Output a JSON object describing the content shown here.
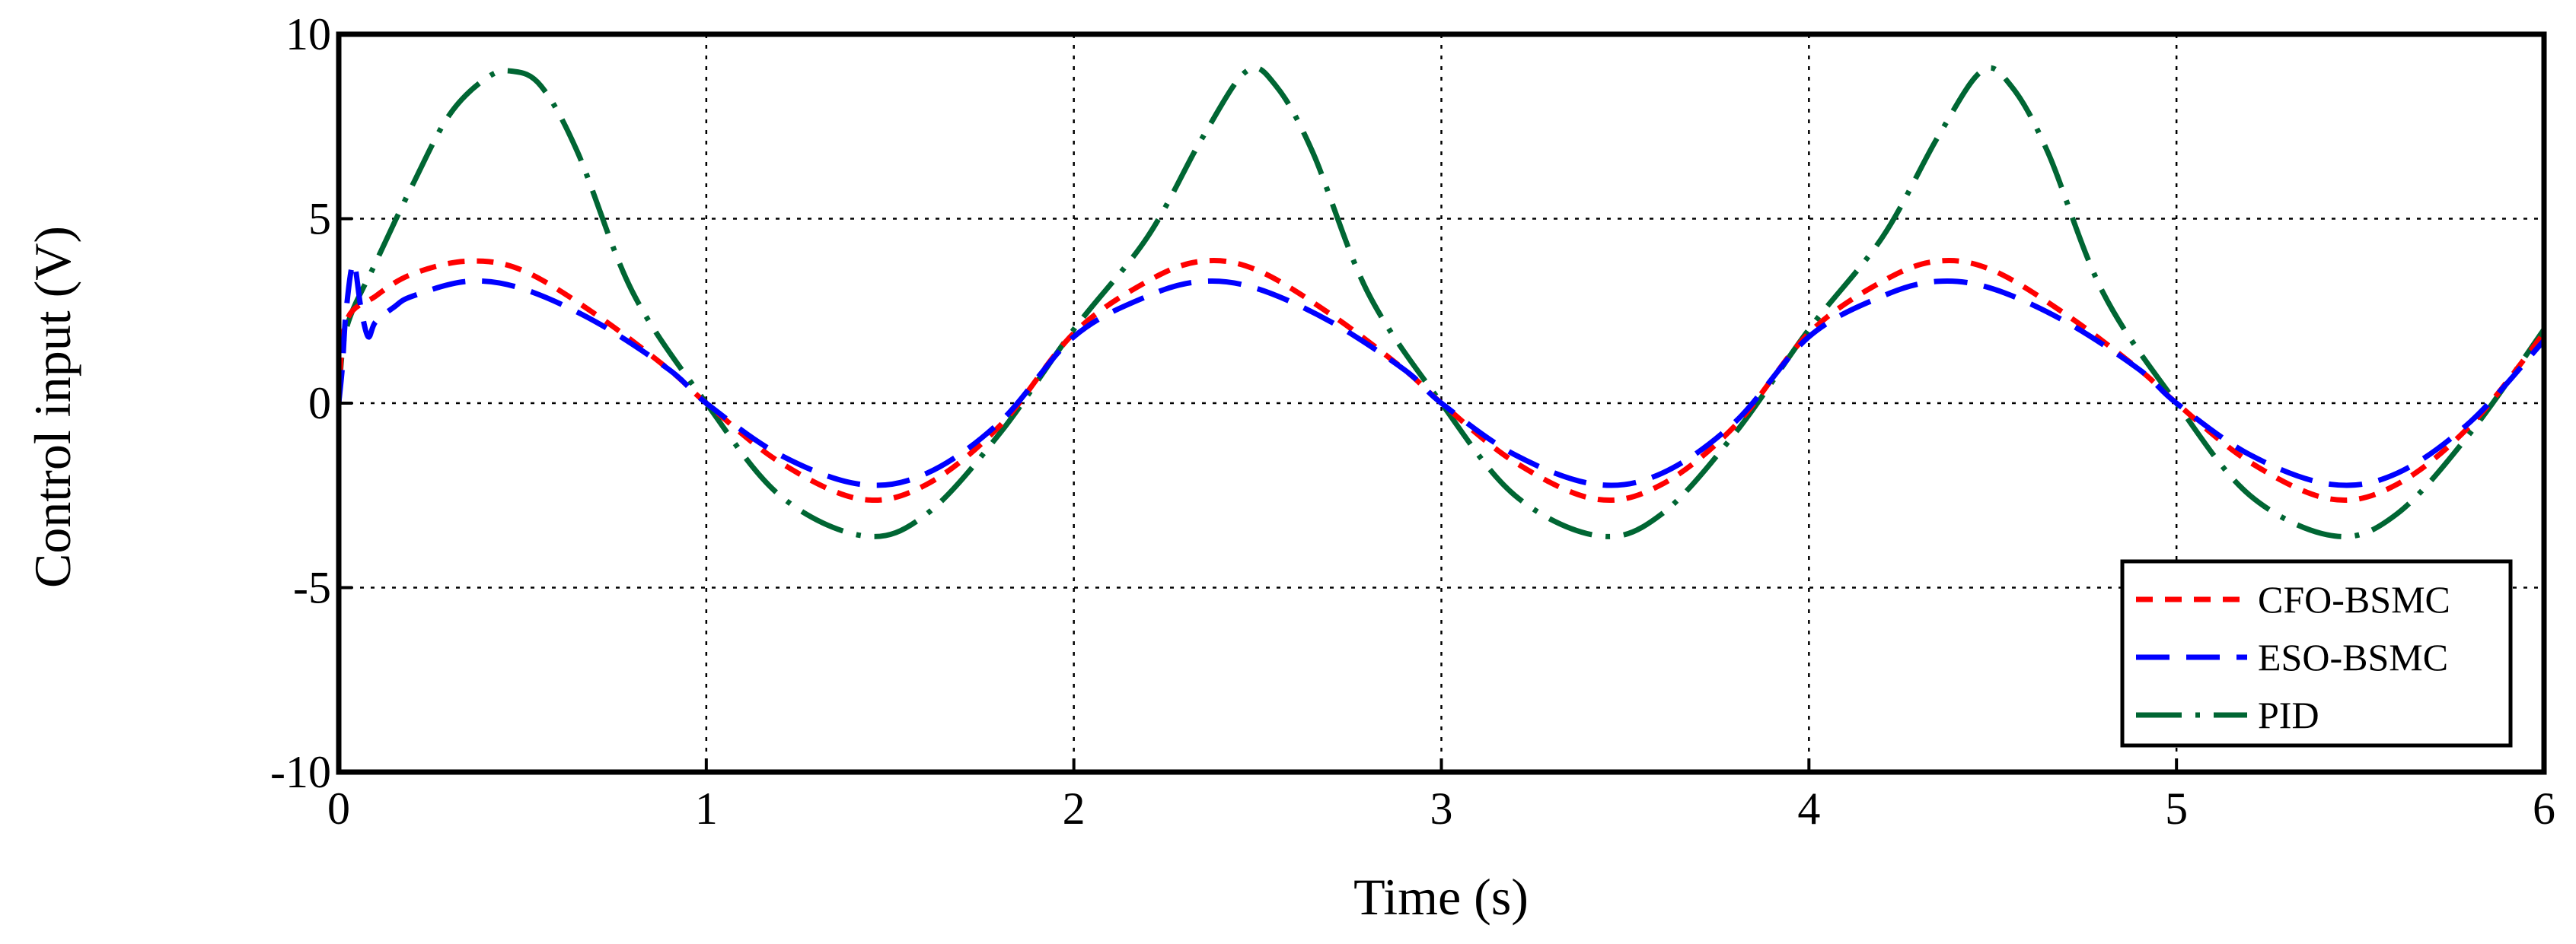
{
  "chart_data": {
    "type": "line",
    "xlabel": "Time (s)",
    "ylabel": "Control input (V)",
    "xlim": [
      0,
      6
    ],
    "ylim": [
      -10,
      10
    ],
    "x_ticks": [
      0,
      1,
      2,
      3,
      4,
      5,
      6
    ],
    "y_ticks": [
      -10,
      -5,
      0,
      5,
      10
    ],
    "x_tick_labels": [
      "0",
      "1",
      "2",
      "3",
      "4",
      "5",
      "6"
    ],
    "y_tick_labels": [
      "-10",
      "-5",
      "0",
      "5",
      "10"
    ],
    "grid": true,
    "legend_position": "bottom-right",
    "series": [
      {
        "name": "CFO-BSMC",
        "color": "#ff0000",
        "dash": "short-dash",
        "x": [
          0,
          0.02,
          0.1,
          0.2,
          0.35,
          0.5,
          0.7,
          0.9,
          1.0,
          1.2,
          1.42,
          1.6,
          1.8,
          2.0,
          2.2,
          2.35,
          2.5,
          2.7,
          2.9,
          3.0,
          3.2,
          3.42,
          3.6,
          3.8,
          4.0,
          4.2,
          4.35,
          4.5,
          4.7,
          4.9,
          5.0,
          5.2,
          5.42,
          5.6,
          5.8,
          6.0
        ],
        "y": [
          0,
          2.2,
          2.9,
          3.5,
          3.85,
          3.6,
          2.4,
          0.9,
          0,
          -1.6,
          -2.6,
          -2.2,
          -0.6,
          1.9,
          3.3,
          3.85,
          3.6,
          2.4,
          0.9,
          0,
          -1.6,
          -2.6,
          -2.2,
          -0.6,
          1.9,
          3.3,
          3.85,
          3.6,
          2.4,
          0.9,
          0,
          -1.6,
          -2.6,
          -2.2,
          -0.6,
          1.9
        ]
      },
      {
        "name": "ESO-BSMC",
        "color": "#0000ff",
        "dash": "dash",
        "x": [
          0,
          0.01,
          0.02,
          0.04,
          0.06,
          0.08,
          0.1,
          0.15,
          0.2,
          0.35,
          0.5,
          0.7,
          0.9,
          1.0,
          1.2,
          1.42,
          1.6,
          1.8,
          2.0,
          2.2,
          2.35,
          2.5,
          2.7,
          2.9,
          3.0,
          3.2,
          3.42,
          3.6,
          3.8,
          4.0,
          4.2,
          4.35,
          4.5,
          4.7,
          4.9,
          5.0,
          5.2,
          5.42,
          5.6,
          5.8,
          6.0
        ],
        "y": [
          0,
          1.0,
          2.5,
          3.8,
          2.6,
          1.8,
          2.2,
          2.6,
          2.9,
          3.3,
          3.1,
          2.2,
          0.9,
          0,
          -1.4,
          -2.2,
          -1.9,
          -0.5,
          1.8,
          2.9,
          3.3,
          3.1,
          2.2,
          0.9,
          0,
          -1.4,
          -2.2,
          -1.9,
          -0.5,
          1.8,
          2.9,
          3.3,
          3.1,
          2.2,
          0.9,
          0,
          -1.4,
          -2.2,
          -1.9,
          -0.5,
          1.7
        ]
      },
      {
        "name": "PID",
        "color": "#006633",
        "dash": "dash-dot",
        "x": [
          0,
          0.02,
          0.1,
          0.2,
          0.3,
          0.4,
          0.47,
          0.55,
          0.65,
          0.8,
          1.0,
          1.2,
          1.43,
          1.6,
          1.8,
          2.0,
          2.2,
          2.35,
          2.47,
          2.55,
          2.65,
          2.8,
          3.0,
          3.2,
          3.43,
          3.6,
          3.8,
          4.0,
          4.2,
          4.35,
          4.47,
          4.55,
          4.65,
          4.8,
          5.0,
          5.2,
          5.43,
          5.6,
          5.8,
          6.0
        ],
        "y": [
          0,
          2.0,
          3.8,
          5.9,
          7.8,
          8.8,
          9.0,
          8.6,
          6.8,
          3.0,
          0,
          -2.5,
          -3.6,
          -3.0,
          -0.8,
          2.0,
          4.5,
          7.2,
          9.0,
          8.6,
          6.8,
          3.0,
          0,
          -2.5,
          -3.6,
          -3.0,
          -0.8,
          2.0,
          4.5,
          7.2,
          9.0,
          8.6,
          6.8,
          3.0,
          0,
          -2.5,
          -3.6,
          -3.0,
          -0.8,
          2.0
        ]
      }
    ]
  }
}
